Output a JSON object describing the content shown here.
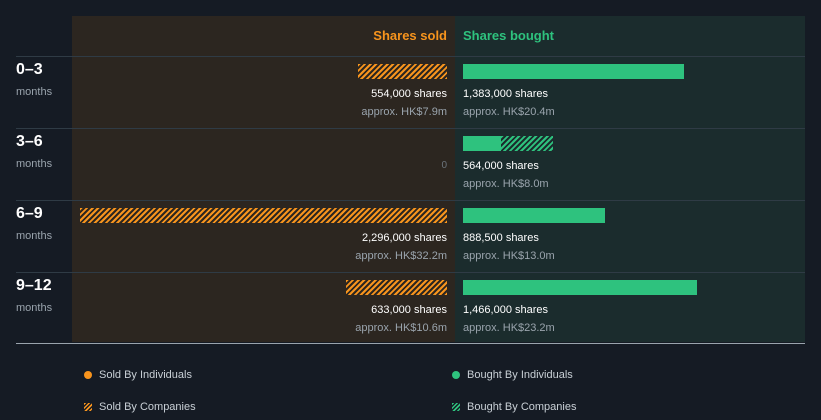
{
  "chart_data": {
    "type": "bar",
    "title": "",
    "columns": {
      "sold": "Shares sold",
      "bought": "Shares bought"
    },
    "categories": [
      "0–3",
      "3–6",
      "6–9",
      "9–12"
    ],
    "unit_label": "months",
    "series": [
      {
        "name": "Sold By Individuals",
        "values": [
          0,
          0,
          0,
          0
        ]
      },
      {
        "name": "Sold By Companies",
        "values": [
          554000,
          0,
          2296000,
          633000
        ]
      },
      {
        "name": "Bought By Individuals",
        "values": [
          1383000,
          240000,
          888500,
          1466000
        ]
      },
      {
        "name": "Bought By Companies",
        "values": [
          0,
          324000,
          0,
          0
        ]
      }
    ],
    "sold_totals": [
      "554,000 shares",
      "0",
      "2,296,000 shares",
      "633,000 shares"
    ],
    "sold_values": [
      "approx. HK$7.9m",
      "",
      "approx. HK$32.2m",
      "approx. HK$10.6m"
    ],
    "bought_totals": [
      "1,383,000 shares",
      "564,000 shares",
      "888,500 shares",
      "1,466,000 shares"
    ],
    "bought_values": [
      "approx. HK$20.4m",
      "approx. HK$8.0m",
      "approx. HK$13.0m",
      "approx. HK$23.2m"
    ],
    "max_value": 2296000,
    "legend": [
      "Sold By Individuals",
      "Bought By Individuals",
      "Sold By Companies",
      "Bought By Companies"
    ]
  },
  "colors": {
    "sold": "#f7941d",
    "bought": "#2ec27e"
  }
}
